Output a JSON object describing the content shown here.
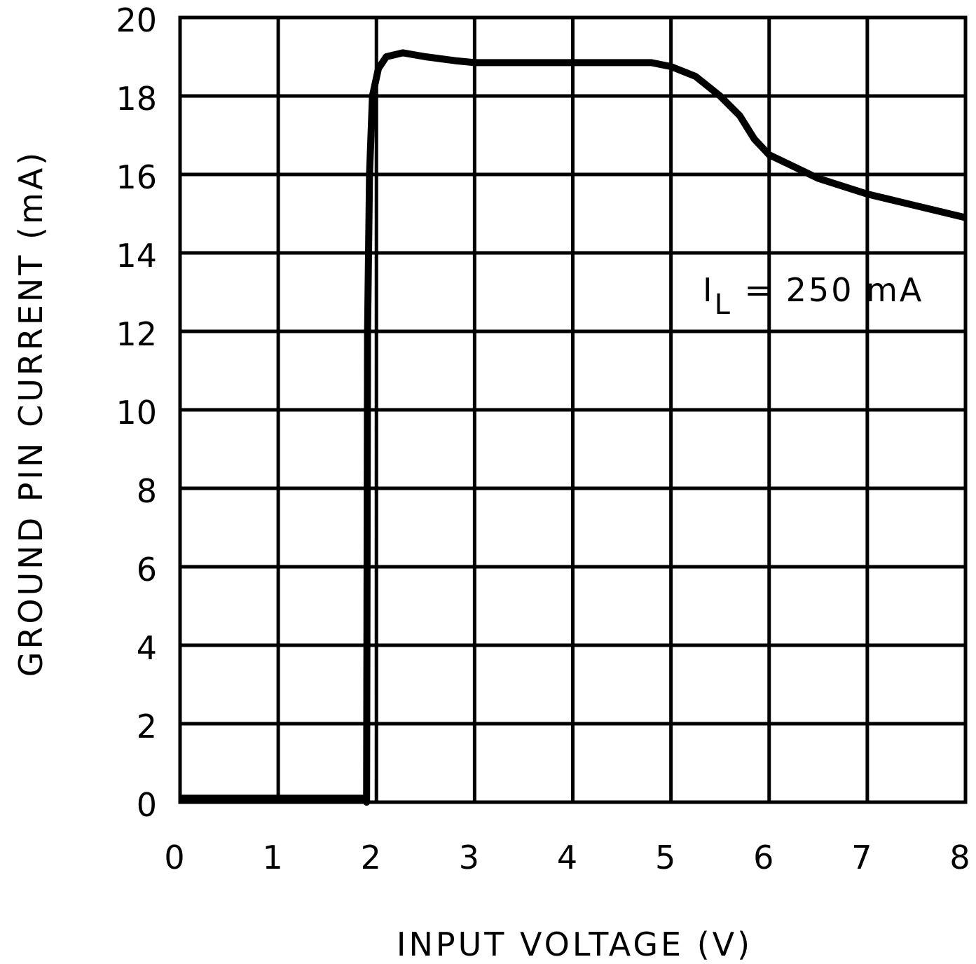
{
  "chart_data": {
    "type": "line",
    "title": "",
    "xlabel": "INPUT VOLTAGE (V)",
    "ylabel": "GROUND PIN CURRENT (mA)",
    "xlim": [
      0,
      8
    ],
    "ylim": [
      0,
      20
    ],
    "xticks": [
      "0",
      "1",
      "2",
      "3",
      "4",
      "5",
      "6",
      "7",
      "8"
    ],
    "yticks": [
      "0",
      "2",
      "4",
      "6",
      "8",
      "10",
      "12",
      "14",
      "16",
      "18",
      "20"
    ],
    "grid": true,
    "annotation": {
      "main": "I",
      "sub": "L",
      "rest": " = 250 mA"
    },
    "line_color": "#000000",
    "series": [
      {
        "x": [
          0,
          1.88,
          1.9,
          1.91,
          1.93,
          1.96,
          2.02,
          2.1,
          2.27,
          2.5,
          2.8,
          3.0,
          4.8,
          5.0,
          5.25,
          5.5,
          5.7,
          5.85,
          6.0,
          6.25,
          6.5,
          7.0,
          7.5,
          8.0
        ],
        "y": [
          0.1,
          0.1,
          0,
          12,
          16,
          18,
          18.7,
          19.0,
          19.1,
          19.0,
          18.9,
          18.85,
          18.85,
          18.75,
          18.5,
          18.0,
          17.5,
          16.9,
          16.5,
          16.2,
          15.9,
          15.5,
          15.2,
          14.9
        ]
      }
    ]
  }
}
